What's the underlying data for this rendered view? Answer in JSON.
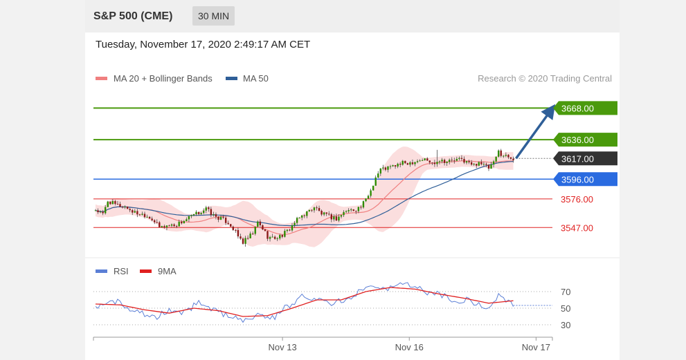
{
  "header": {
    "instrument": "S&P 500 (CME)",
    "interval": "30 MIN",
    "timestamp": "Tuesday, November 17, 2020 2:49:17 AM CET"
  },
  "legend": {
    "items": [
      {
        "label": "MA 20 + Bollinger Bands",
        "color": "#f08080"
      },
      {
        "label": "MA 50",
        "color": "#2f5f98"
      }
    ],
    "credit": "Research © 2020 Trading Central"
  },
  "rsi_legend": {
    "items": [
      {
        "label": "RSI",
        "color": "#5b7fd6"
      },
      {
        "label": "9MA",
        "color": "#e02020"
      }
    ]
  },
  "chart_data": [
    {
      "type": "candlestick",
      "title": "S&P 500 (CME)",
      "ylim": [
        3515,
        3690
      ],
      "x_ticks": [
        {
          "label": "Nov 13",
          "index": 45
        },
        {
          "label": "Nov 16",
          "index": 82
        },
        {
          "label": "Nov 17",
          "index": 119
        }
      ],
      "levels": [
        {
          "value": 3668.0,
          "label": "3668.00",
          "kind": "resistance",
          "color": "#4a9a0c"
        },
        {
          "value": 3636.0,
          "label": "3636.00",
          "kind": "resistance",
          "color": "#4a9a0c"
        },
        {
          "value": 3617.0,
          "label": "3617.00",
          "kind": "last",
          "color": "#333333"
        },
        {
          "value": 3596.0,
          "label": "3596.00",
          "kind": "pivot",
          "color": "#2a6be0"
        },
        {
          "value": 3576.0,
          "label": "3576.00",
          "kind": "support",
          "color": "#e02020"
        },
        {
          "value": 3547.0,
          "label": "3547.00",
          "kind": "support",
          "color": "#e02020"
        }
      ],
      "arrow": {
        "from": 3617,
        "to": 3666,
        "color": "#2f5f98"
      },
      "series": [
        {
          "name": "MA 20 + Bollinger Bands",
          "role": "band"
        },
        {
          "name": "MA 50",
          "role": "ma50"
        }
      ],
      "close_path": [
        [
          0,
          3565
        ],
        [
          3,
          3560
        ],
        [
          5,
          3574
        ],
        [
          8,
          3570
        ],
        [
          12,
          3568
        ],
        [
          16,
          3562
        ],
        [
          20,
          3560
        ],
        [
          23,
          3556
        ],
        [
          26,
          3547
        ],
        [
          29,
          3549
        ],
        [
          33,
          3550
        ],
        [
          36,
          3554
        ],
        [
          39,
          3558
        ],
        [
          42,
          3562
        ],
        [
          45,
          3566
        ],
        [
          48,
          3559
        ],
        [
          51,
          3556
        ],
        [
          54,
          3552
        ],
        [
          56,
          3546
        ],
        [
          58,
          3538
        ],
        [
          60,
          3532
        ],
        [
          62,
          3536
        ],
        [
          64,
          3541
        ],
        [
          66,
          3552
        ],
        [
          68,
          3546
        ],
        [
          70,
          3538
        ],
        [
          72,
          3536
        ],
        [
          75,
          3538
        ],
        [
          78,
          3543
        ],
        [
          81,
          3552
        ],
        [
          84,
          3559
        ],
        [
          87,
          3564
        ],
        [
          89,
          3568
        ],
        [
          92,
          3561
        ],
        [
          95,
          3558
        ],
        [
          98,
          3556
        ],
        [
          100,
          3560
        ],
        [
          102,
          3564
        ],
        [
          105,
          3565
        ],
        [
          108,
          3568
        ],
        [
          110,
          3575
        ],
        [
          112,
          3585
        ],
        [
          114,
          3598
        ],
        [
          116,
          3606
        ],
        [
          118,
          3607
        ],
        [
          120,
          3608
        ],
        [
          122,
          3610
        ],
        [
          125,
          3612
        ],
        [
          128,
          3613
        ],
        [
          131,
          3615
        ],
        [
          134,
          3616
        ],
        [
          137,
          3612
        ],
        [
          140,
          3616
        ],
        [
          143,
          3614
        ],
        [
          146,
          3615
        ],
        [
          149,
          3616
        ],
        [
          152,
          3612
        ],
        [
          154,
          3610
        ],
        [
          156,
          3614
        ],
        [
          158,
          3610
        ],
        [
          160,
          3607
        ],
        [
          162,
          3612
        ],
        [
          164,
          3624
        ],
        [
          166,
          3620
        ],
        [
          168,
          3619
        ],
        [
          170,
          3617
        ]
      ]
    },
    {
      "type": "line",
      "title": "RSI",
      "ylim": [
        20,
        80
      ],
      "y_ticks": [
        70,
        50,
        30
      ],
      "series": [
        {
          "name": "RSI",
          "color": "#5b7fd6",
          "points": [
            [
              0,
              50
            ],
            [
              6,
              62
            ],
            [
              12,
              52
            ],
            [
              18,
              46
            ],
            [
              24,
              37
            ],
            [
              30,
              48
            ],
            [
              36,
              44
            ],
            [
              42,
              58
            ],
            [
              48,
              48
            ],
            [
              54,
              40
            ],
            [
              60,
              36
            ],
            [
              66,
              42
            ],
            [
              72,
              38
            ],
            [
              78,
              52
            ],
            [
              84,
              65
            ],
            [
              90,
              62
            ],
            [
              96,
              55
            ],
            [
              102,
              60
            ],
            [
              108,
              72
            ],
            [
              112,
              80
            ],
            [
              118,
              74
            ],
            [
              124,
              78
            ],
            [
              130,
              76
            ],
            [
              136,
              68
            ],
            [
              142,
              66
            ],
            [
              148,
              55
            ],
            [
              152,
              62
            ],
            [
              156,
              53
            ],
            [
              160,
              50
            ],
            [
              164,
              64
            ],
            [
              168,
              60
            ],
            [
              170,
              55
            ]
          ]
        },
        {
          "name": "9MA",
          "color": "#e02020",
          "points": [
            [
              0,
              55
            ],
            [
              10,
              54
            ],
            [
              20,
              48
            ],
            [
              30,
              44
            ],
            [
              40,
              50
            ],
            [
              50,
              47
            ],
            [
              60,
              40
            ],
            [
              70,
              41
            ],
            [
              80,
              50
            ],
            [
              90,
              60
            ],
            [
              100,
              60
            ],
            [
              110,
              70
            ],
            [
              120,
              75
            ],
            [
              130,
              73
            ],
            [
              140,
              67
            ],
            [
              150,
              62
            ],
            [
              160,
              56
            ],
            [
              170,
              59
            ]
          ]
        }
      ]
    }
  ]
}
